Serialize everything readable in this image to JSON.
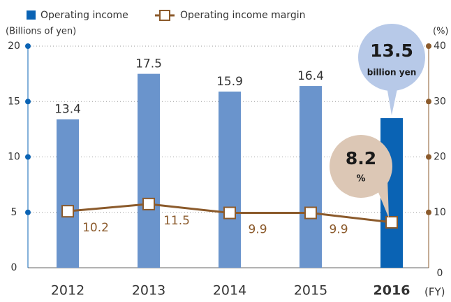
{
  "chart_data": {
    "type": "bar_line",
    "categories": [
      "2012",
      "2013",
      "2014",
      "2015",
      "2016"
    ],
    "series": [
      {
        "name": "Operating income",
        "type": "bar",
        "color": "#0a63b4",
        "colors": [
          "#6a94cc",
          "#6a94cc",
          "#6a94cc",
          "#6a94cc",
          "#0a63b4"
        ],
        "values": [
          13.4,
          17.5,
          15.9,
          16.4,
          13.5
        ]
      },
      {
        "name": "Operating income margin",
        "type": "line",
        "axis": "y2",
        "color": "#8b5a2b",
        "values": [
          10.2,
          11.5,
          9.9,
          9.9,
          8.2
        ]
      }
    ],
    "ylabel": "(Billions of yen)",
    "y2label": "(%)",
    "xlabel": "(FY)",
    "annotations": [
      "billion yen",
      "%"
    ],
    "ylim": [
      0,
      20
    ],
    "yticks": [
      0,
      5,
      10,
      15,
      20
    ],
    "y2lim": [
      0,
      40
    ],
    "y2ticks": [
      0,
      10,
      20,
      30,
      40
    ],
    "grid": true
  }
}
